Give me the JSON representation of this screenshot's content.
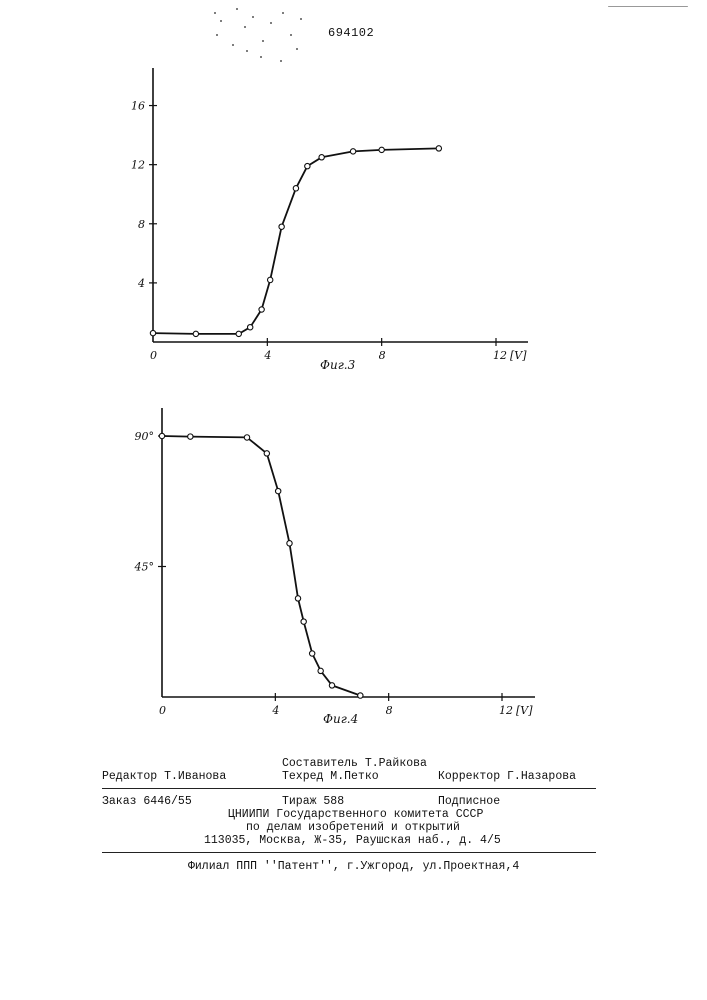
{
  "document": {
    "patent_number": "694102"
  },
  "chart_data": [
    {
      "type": "line",
      "caption": "Фиг.3",
      "xlabel": "[V]",
      "ylabel": "",
      "xlim": [
        0,
        12
      ],
      "ylim": [
        0,
        18
      ],
      "x_ticks": [
        "0",
        "4",
        "8",
        "12"
      ],
      "y_ticks": [
        "4",
        "8",
        "12",
        "16"
      ],
      "series": [
        {
          "x": [
            0,
            1.5,
            3,
            3.4,
            3.8,
            4.1,
            4.5,
            5.0,
            5.4,
            5.9,
            7.0,
            8.0,
            10.0
          ],
          "y": [
            0.6,
            0.55,
            0.55,
            1.0,
            2.2,
            4.2,
            7.8,
            10.4,
            11.9,
            12.5,
            12.9,
            13.0,
            13.1
          ]
        }
      ]
    },
    {
      "type": "line",
      "caption": "Фиг.4",
      "xlabel": "[V]",
      "ylabel": "",
      "xlim": [
        0,
        12
      ],
      "ylim": [
        0,
        100
      ],
      "x_ticks": [
        "0",
        "4",
        "8",
        "12"
      ],
      "y_ticks": [
        "45°",
        "90°"
      ],
      "series": [
        {
          "x": [
            0,
            1.0,
            3.0,
            3.7,
            4.1,
            4.5,
            4.8,
            5.0,
            5.3,
            5.6,
            6.0,
            7.0
          ],
          "y": [
            90,
            89.8,
            89.5,
            84,
            71,
            53,
            34,
            26,
            15,
            9,
            4,
            0.5
          ]
        }
      ]
    }
  ],
  "imprint": {
    "compiler": "Составитель Т.Райкова",
    "editor": "Редактор Т.Иванова",
    "techred": "Техред М.Петко",
    "corrector": "Корректор Г.Назарова",
    "order": "Заказ 6446/55",
    "circulation": "Тираж 588",
    "subscription": "Подписное",
    "institute": "ЦНИИПИ Государственного комитета СССР",
    "institute_line2": "по делам изобретений и открытий",
    "address": "113035, Москва, Ж-35, Раушская наб., д. 4/5",
    "branch": "Филиал ППП ''Патент'', г.Ужгород, ул.Проектная,4"
  }
}
